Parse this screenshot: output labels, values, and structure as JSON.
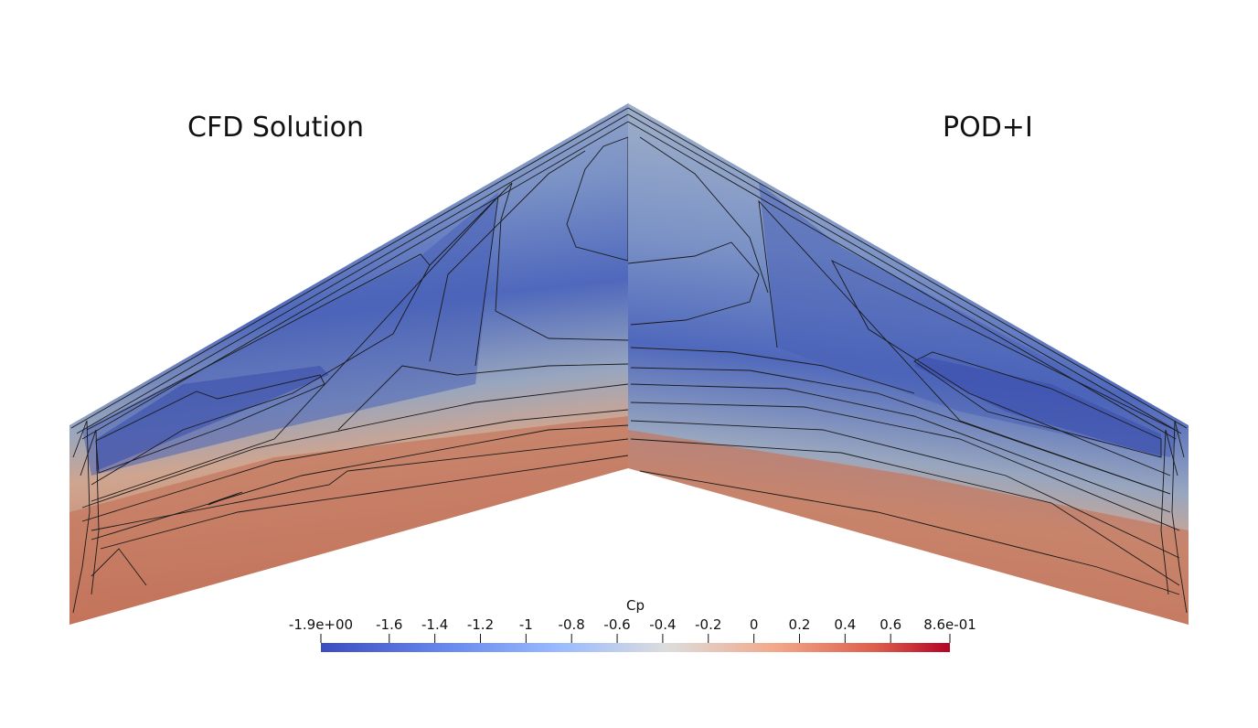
{
  "panels": {
    "left_title": "CFD Solution",
    "right_title": "POD+I"
  },
  "colorbar": {
    "title": "Cp",
    "min": -1.9,
    "max": 0.86,
    "tick_values": [
      -1.9,
      -1.6,
      -1.4,
      -1.2,
      -1.0,
      -0.8,
      -0.6,
      -0.4,
      -0.2,
      0.0,
      0.2,
      0.4,
      0.6,
      0.86
    ],
    "tick_labels": [
      "-1.9e+00",
      "-1.6",
      "-1.4",
      "-1.2",
      "-1",
      "-0.8",
      "-0.6",
      "-0.4",
      "-0.2",
      "0",
      "0.2",
      "0.4",
      "0.6",
      "8.6e-01"
    ],
    "colormap": "cool-to-warm",
    "colors": {
      "low": "#3b4cc0",
      "mid": "#dddddd",
      "high": "#b40426"
    }
  },
  "colors": {
    "wing_suction_peak": "#3f56b5",
    "wing_mid": "#8fa2c4",
    "wing_trailing": "#c47a5e",
    "contour_line": "#1a1a1a"
  }
}
